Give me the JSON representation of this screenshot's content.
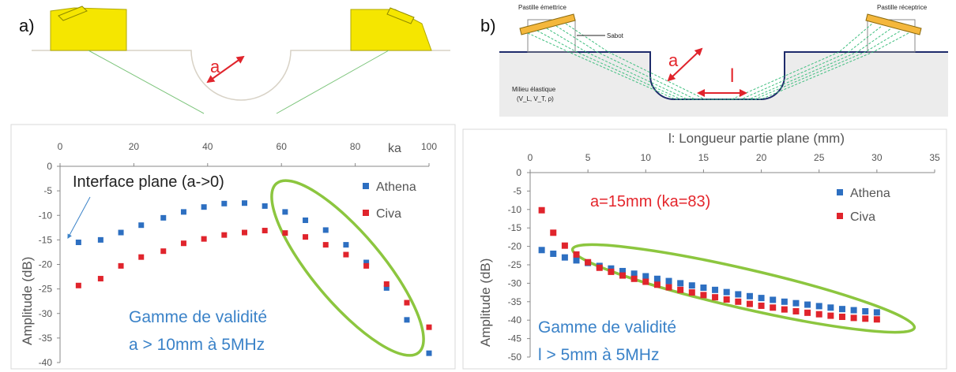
{
  "colors": {
    "athena": "#2d6fc1",
    "civa": "#e0242c",
    "highlight": "#8cc63f",
    "blue_text": "#3a82c8",
    "red_text": "#e4262c",
    "yellow": "#f5e600"
  },
  "diagram_a": {
    "panel_label": "a)",
    "radius_label": "a"
  },
  "diagram_b": {
    "panel_label": "b)",
    "emitter_label": "Pastille émettrice",
    "receiver_label": "Pastille réceptrice",
    "shoe_label": "Sabot",
    "medium_label_1": "Milieu élastique",
    "medium_label_2": "(V_L, V_T, ρ)",
    "radius_label": "a",
    "length_label": "l"
  },
  "chart_data": [
    {
      "type": "scatter",
      "xlabel": "ka",
      "ylabel": "Amplitude (dB)",
      "xlim": [
        0,
        100
      ],
      "ylim": [
        -40,
        0
      ],
      "xticks": [
        "0",
        "20",
        "40",
        "60",
        "80",
        "100"
      ],
      "yticks": [
        "0",
        "-5",
        "-10",
        "-15",
        "-20",
        "-25",
        "-30",
        "-35",
        "-40"
      ],
      "legend_position": "top-right",
      "annotations": [
        "Interface plane (a->0)",
        "Gamme de validité",
        "a > 10mm à 5MHz"
      ],
      "series": [
        {
          "name": "Athena",
          "x": [
            5,
            11,
            16.5,
            22,
            28,
            33.5,
            39,
            44.5,
            50,
            55.5,
            61,
            66.5,
            72,
            77.5,
            83,
            88.5,
            94,
            100
          ],
          "y": [
            -15.5,
            -15,
            -13.5,
            -12,
            -10.5,
            -9.3,
            -8.3,
            -7.6,
            -7.5,
            -8.1,
            -9.3,
            -11,
            -13,
            -16,
            -19.6,
            -24.8,
            -31.3,
            -38.1
          ]
        },
        {
          "name": "Civa",
          "x": [
            5,
            11,
            16.5,
            22,
            28,
            33.5,
            39,
            44.5,
            50,
            55.5,
            61,
            66.5,
            72,
            77.5,
            83,
            88.5,
            94,
            100
          ],
          "y": [
            -24.3,
            -22.9,
            -20.3,
            -18.5,
            -17.3,
            -15.7,
            -14.8,
            -14,
            -13.5,
            -13.1,
            -13.6,
            -14.4,
            -16,
            -18,
            -20.3,
            -24,
            -27.8,
            -32.8
          ]
        }
      ]
    },
    {
      "type": "scatter",
      "xlabel": "l: Longueur partie plane (mm)",
      "ylabel": "Amplitude (dB)",
      "xlim": [
        0,
        35
      ],
      "ylim": [
        -50,
        0
      ],
      "xticks": [
        "0",
        "5",
        "10",
        "15",
        "20",
        "25",
        "30",
        "35"
      ],
      "yticks": [
        "0",
        "-5",
        "-10",
        "-15",
        "-20",
        "-25",
        "-30",
        "-35",
        "-40",
        "-45",
        "-50"
      ],
      "legend_position": "top-right",
      "annotations": [
        "a=15mm (ka=83)",
        "Gamme de validité",
        "l > 5mm à 5MHz"
      ],
      "series": [
        {
          "name": "Athena",
          "x": [
            1,
            2,
            3,
            4,
            5,
            6,
            7,
            8,
            9,
            10,
            11,
            12,
            13,
            14,
            15,
            16,
            17,
            18,
            19,
            20,
            21,
            22,
            23,
            24,
            25,
            26,
            27,
            28,
            29,
            30
          ],
          "y": [
            -21,
            -22,
            -23,
            -23.8,
            -24.5,
            -25.3,
            -26,
            -26.7,
            -27.4,
            -28.1,
            -28.8,
            -29.4,
            -30,
            -30.6,
            -31.2,
            -31.8,
            -32.4,
            -33,
            -33.5,
            -34,
            -34.5,
            -35,
            -35.4,
            -35.8,
            -36.2,
            -36.6,
            -37,
            -37.3,
            -37.6,
            -37.9
          ]
        },
        {
          "name": "Civa",
          "x": [
            1,
            2,
            3,
            4,
            5,
            6,
            7,
            8,
            9,
            10,
            11,
            12,
            13,
            14,
            15,
            16,
            17,
            18,
            19,
            20,
            21,
            22,
            23,
            24,
            25,
            26,
            27,
            28,
            29,
            30
          ],
          "y": [
            -10.2,
            -16.3,
            -19.8,
            -22.2,
            -24.3,
            -25.8,
            -26.9,
            -27.9,
            -28.8,
            -29.6,
            -30.4,
            -31.1,
            -31.8,
            -32.5,
            -33.2,
            -33.8,
            -34.4,
            -35,
            -35.6,
            -36.1,
            -36.6,
            -37.1,
            -37.6,
            -38,
            -38.4,
            -38.8,
            -39.1,
            -39.4,
            -39.6,
            -39.8
          ]
        }
      ]
    }
  ]
}
